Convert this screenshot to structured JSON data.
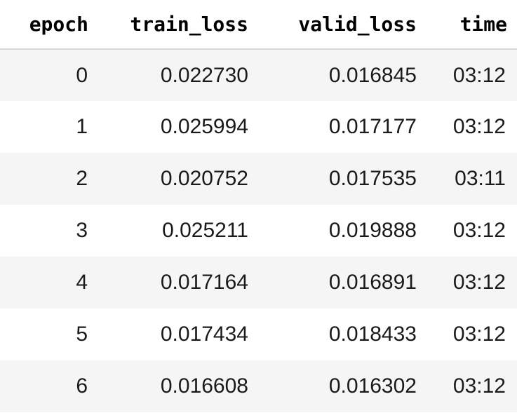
{
  "table": {
    "columns": [
      "epoch",
      "train_loss",
      "valid_loss",
      "time"
    ],
    "rows": [
      {
        "epoch": "0",
        "train_loss": "0.022730",
        "valid_loss": "0.016845",
        "time": "03:12"
      },
      {
        "epoch": "1",
        "train_loss": "0.025994",
        "valid_loss": "0.017177",
        "time": "03:12"
      },
      {
        "epoch": "2",
        "train_loss": "0.020752",
        "valid_loss": "0.017535",
        "time": "03:11"
      },
      {
        "epoch": "3",
        "train_loss": "0.025211",
        "valid_loss": "0.019888",
        "time": "03:12"
      },
      {
        "epoch": "4",
        "train_loss": "0.017164",
        "valid_loss": "0.016891",
        "time": "03:12"
      },
      {
        "epoch": "5",
        "train_loss": "0.017434",
        "valid_loss": "0.018433",
        "time": "03:12"
      },
      {
        "epoch": "6",
        "train_loss": "0.016608",
        "valid_loss": "0.016302",
        "time": "03:12"
      }
    ],
    "colors": {
      "stripe": "#f5f5f5",
      "header_rule": "#d9d9d9",
      "text": "#1a1a1a"
    }
  }
}
